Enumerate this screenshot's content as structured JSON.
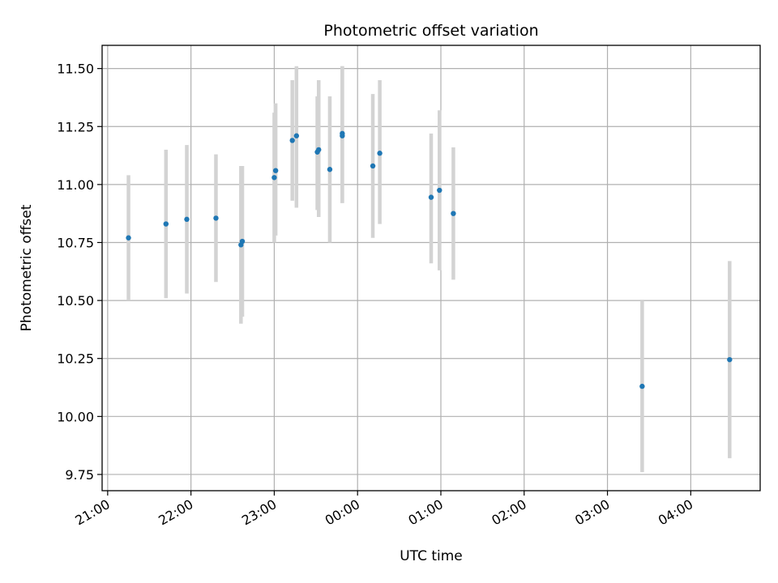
{
  "chart_data": {
    "type": "scatter",
    "title": "Photometric offset variation",
    "xlabel": "UTC time",
    "ylabel": "Photometric offset",
    "xlim": [
      "20:56",
      "04:50"
    ],
    "ylim": [
      9.68,
      11.6
    ],
    "x_ticks": [
      "21:00",
      "22:00",
      "23:00",
      "00:00",
      "01:00",
      "02:00",
      "03:00",
      "04:00"
    ],
    "y_ticks": [
      9.75,
      10.0,
      10.25,
      10.5,
      10.75,
      11.0,
      11.25,
      11.5
    ],
    "y_tick_labels": [
      "9.75",
      "10.00",
      "10.25",
      "10.50",
      "10.75",
      "11.00",
      "11.25",
      "11.50"
    ],
    "grid": true,
    "colors": {
      "marker": "#1f77b4",
      "errorbar": "#d3d3d3",
      "grid": "#b0b0b0"
    },
    "points": [
      {
        "x": "21:15",
        "y": 10.77,
        "ylow": 10.5,
        "yhigh": 11.04
      },
      {
        "x": "21:42",
        "y": 10.83,
        "ylow": 10.51,
        "yhigh": 11.15
      },
      {
        "x": "21:57",
        "y": 10.85,
        "ylow": 10.53,
        "yhigh": 11.17
      },
      {
        "x": "22:18",
        "y": 10.855,
        "ylow": 10.58,
        "yhigh": 11.13
      },
      {
        "x": "22:36",
        "y": 10.74,
        "ylow": 10.4,
        "yhigh": 11.08
      },
      {
        "x": "22:37",
        "y": 10.755,
        "ylow": 10.43,
        "yhigh": 11.08
      },
      {
        "x": "23:00",
        "y": 11.03,
        "ylow": 10.75,
        "yhigh": 11.31
      },
      {
        "x": "23:01",
        "y": 11.06,
        "ylow": 10.78,
        "yhigh": 11.35
      },
      {
        "x": "23:13",
        "y": 11.19,
        "ylow": 10.93,
        "yhigh": 11.45
      },
      {
        "x": "23:16",
        "y": 11.21,
        "ylow": 10.9,
        "yhigh": 11.51
      },
      {
        "x": "23:31",
        "y": 11.14,
        "ylow": 10.89,
        "yhigh": 11.38
      },
      {
        "x": "23:32",
        "y": 11.15,
        "ylow": 10.86,
        "yhigh": 11.45
      },
      {
        "x": "23:40",
        "y": 11.065,
        "ylow": 10.75,
        "yhigh": 11.38
      },
      {
        "x": "23:49",
        "y": 11.22,
        "ylow": 10.92,
        "yhigh": 11.51
      },
      {
        "x": "23:49",
        "y": 11.21,
        "ylow": 10.92,
        "yhigh": 11.51
      },
      {
        "x": "00:11",
        "y": 11.08,
        "ylow": 10.77,
        "yhigh": 11.39
      },
      {
        "x": "00:16",
        "y": 11.135,
        "ylow": 10.83,
        "yhigh": 11.45
      },
      {
        "x": "00:53",
        "y": 10.945,
        "ylow": 10.66,
        "yhigh": 11.22
      },
      {
        "x": "00:59",
        "y": 10.975,
        "ylow": 10.63,
        "yhigh": 11.32
      },
      {
        "x": "01:09",
        "y": 10.875,
        "ylow": 10.59,
        "yhigh": 11.16
      },
      {
        "x": "03:25",
        "y": 10.13,
        "ylow": 9.76,
        "yhigh": 10.5
      },
      {
        "x": "04:28",
        "y": 10.245,
        "ylow": 9.82,
        "yhigh": 10.67
      }
    ]
  }
}
